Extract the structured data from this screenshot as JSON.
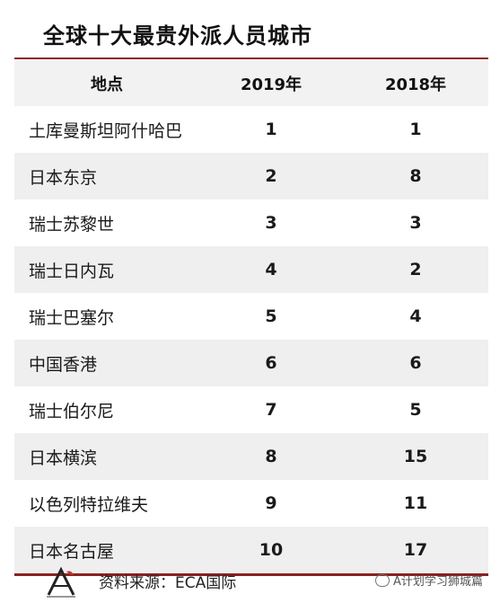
{
  "title": "全球十大最贵外派人员城市",
  "chart_data": {
    "type": "table",
    "columns": [
      "地点",
      "2019年",
      "2018年"
    ],
    "rows": [
      {
        "place": "土库曼斯坦阿什哈巴",
        "y2019": 1,
        "y2018": 1
      },
      {
        "place": "日本东京",
        "y2019": 2,
        "y2018": 8
      },
      {
        "place": "瑞士苏黎世",
        "y2019": 3,
        "y2018": 3
      },
      {
        "place": "瑞士日内瓦",
        "y2019": 4,
        "y2018": 2
      },
      {
        "place": "瑞士巴塞尔",
        "y2019": 5,
        "y2018": 4
      },
      {
        "place": "中国香港",
        "y2019": 6,
        "y2018": 6
      },
      {
        "place": "瑞士伯尔尼",
        "y2019": 7,
        "y2018": 5
      },
      {
        "place": "日本横滨",
        "y2019": 8,
        "y2018": 15
      },
      {
        "place": "以色列特拉维夫",
        "y2019": 9,
        "y2018": 11
      },
      {
        "place": "日本名古屋",
        "y2019": 10,
        "y2018": 17
      }
    ]
  },
  "footer": {
    "source": "资料来源：ECA国际",
    "watermark": "A计划学习狮城篇"
  },
  "colors": {
    "accent": "#8b2020",
    "stripe": "#efefef"
  }
}
